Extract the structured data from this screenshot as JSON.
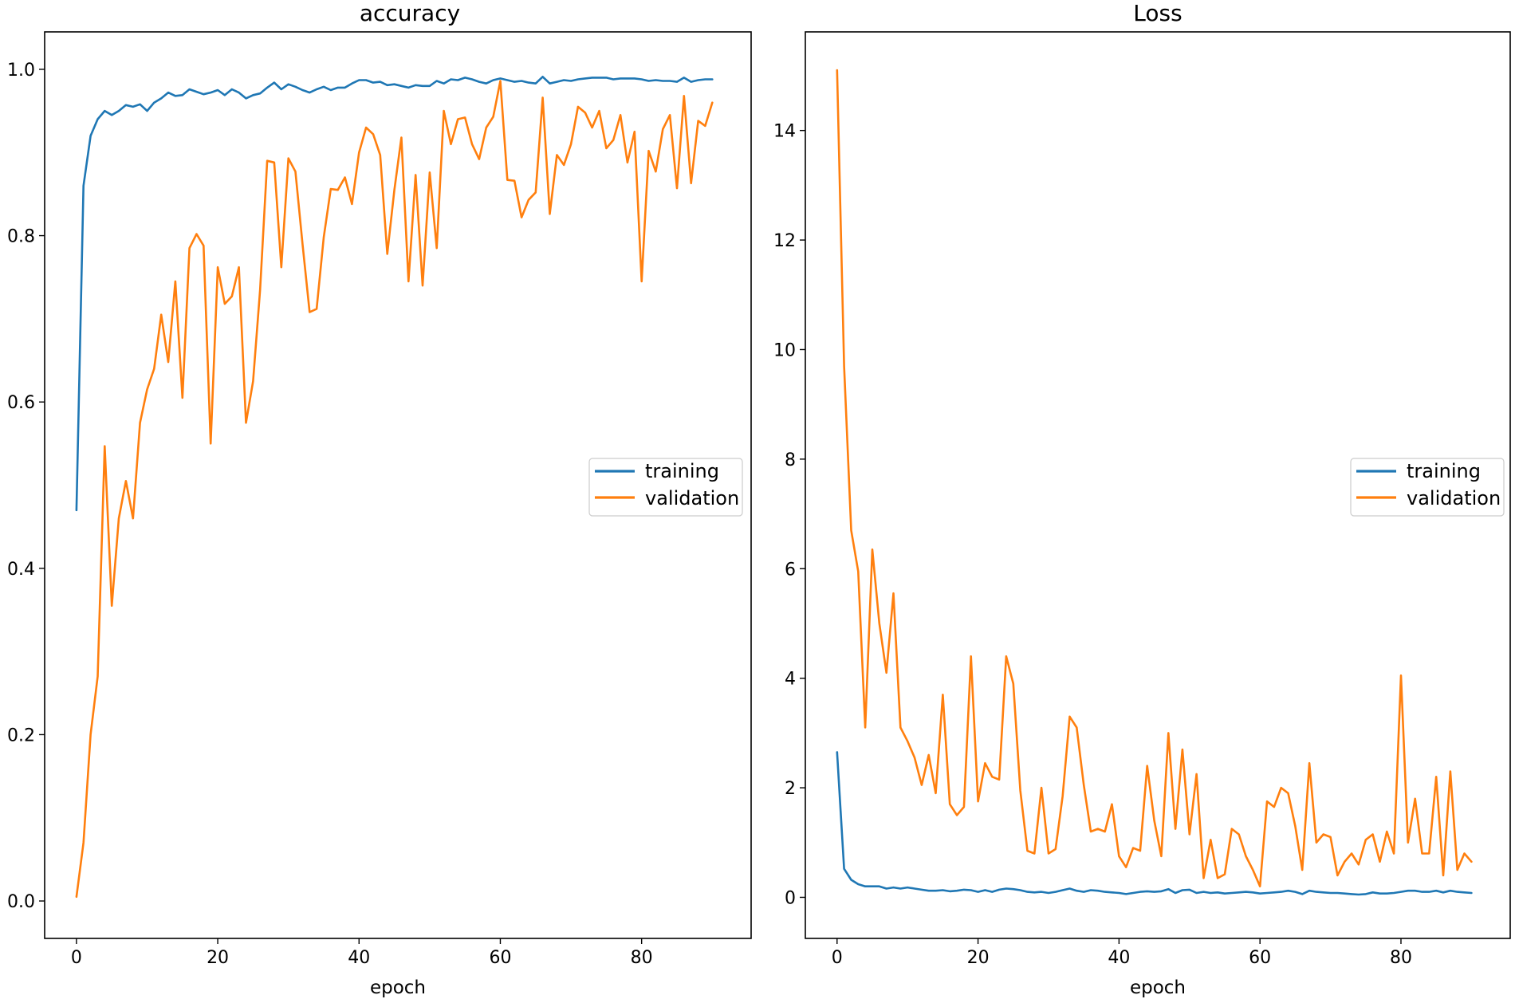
{
  "chart_data": [
    {
      "type": "line",
      "title": "accuracy",
      "xlabel": "epoch",
      "ylabel": "",
      "xlim": [
        -4.5,
        95.5
      ],
      "ylim": [
        -0.045,
        1.045
      ],
      "xticks": [
        0,
        20,
        40,
        60,
        80
      ],
      "xtick_labels": [
        "0",
        "20",
        "40",
        "60",
        "80"
      ],
      "yticks": [
        0.0,
        0.2,
        0.4,
        0.6,
        0.8,
        1.0
      ],
      "ytick_labels": [
        "0.0",
        "0.2",
        "0.4",
        "0.6",
        "0.8",
        "1.0"
      ],
      "grid": false,
      "legend_position": "center-right",
      "legend": [
        "training",
        "validation"
      ],
      "x": [
        0,
        1,
        2,
        3,
        4,
        5,
        6,
        7,
        8,
        9,
        10,
        11,
        12,
        13,
        14,
        15,
        16,
        17,
        18,
        19,
        20,
        21,
        22,
        23,
        24,
        25,
        26,
        27,
        28,
        29,
        30,
        31,
        32,
        33,
        34,
        35,
        36,
        37,
        38,
        39,
        40,
        41,
        42,
        43,
        44,
        45,
        46,
        47,
        48,
        49,
        50,
        51,
        52,
        53,
        54,
        55,
        56,
        57,
        58,
        59,
        60,
        61,
        62,
        63,
        64,
        65,
        66,
        67,
        68,
        69,
        70,
        71,
        72,
        73,
        74,
        75,
        76,
        77,
        78,
        79,
        80,
        81,
        82,
        83,
        84,
        85,
        86,
        87,
        88,
        89,
        90
      ],
      "series": [
        {
          "name": "training",
          "color": "#1f77b4",
          "values": [
            0.47,
            0.86,
            0.92,
            0.94,
            0.95,
            0.945,
            0.95,
            0.957,
            0.955,
            0.958,
            0.95,
            0.96,
            0.965,
            0.972,
            0.968,
            0.969,
            0.976,
            0.973,
            0.97,
            0.972,
            0.975,
            0.969,
            0.976,
            0.972,
            0.965,
            0.969,
            0.971,
            0.978,
            0.984,
            0.976,
            0.982,
            0.979,
            0.975,
            0.972,
            0.976,
            0.979,
            0.975,
            0.978,
            0.978,
            0.983,
            0.987,
            0.987,
            0.984,
            0.985,
            0.981,
            0.982,
            0.98,
            0.978,
            0.981,
            0.98,
            0.98,
            0.986,
            0.983,
            0.988,
            0.987,
            0.99,
            0.988,
            0.985,
            0.983,
            0.987,
            0.989,
            0.987,
            0.985,
            0.986,
            0.984,
            0.983,
            0.991,
            0.983,
            0.985,
            0.987,
            0.986,
            0.988,
            0.989,
            0.99,
            0.99,
            0.99,
            0.988,
            0.989,
            0.989,
            0.989,
            0.988,
            0.986,
            0.987,
            0.986,
            0.986,
            0.985,
            0.99,
            0.985,
            0.987,
            0.988,
            0.988
          ]
        },
        {
          "name": "validation",
          "color": "#ff7f0e",
          "values": [
            0.005,
            0.07,
            0.2,
            0.27,
            0.547,
            0.355,
            0.46,
            0.505,
            0.46,
            0.575,
            0.615,
            0.64,
            0.705,
            0.648,
            0.745,
            0.605,
            0.785,
            0.802,
            0.788,
            0.55,
            0.762,
            0.718,
            0.727,
            0.762,
            0.575,
            0.625,
            0.735,
            0.89,
            0.888,
            0.762,
            0.893,
            0.877,
            0.79,
            0.708,
            0.712,
            0.798,
            0.856,
            0.855,
            0.87,
            0.838,
            0.9,
            0.93,
            0.922,
            0.897,
            0.778,
            0.855,
            0.918,
            0.745,
            0.873,
            0.74,
            0.876,
            0.785,
            0.95,
            0.91,
            0.94,
            0.942,
            0.91,
            0.892,
            0.93,
            0.943,
            0.986,
            0.867,
            0.866,
            0.822,
            0.843,
            0.852,
            0.966,
            0.826,
            0.897,
            0.885,
            0.91,
            0.955,
            0.948,
            0.93,
            0.95,
            0.905,
            0.915,
            0.945,
            0.888,
            0.925,
            0.745,
            0.902,
            0.877,
            0.928,
            0.945,
            0.857,
            0.968,
            0.863,
            0.938,
            0.932,
            0.96
          ]
        }
      ]
    },
    {
      "type": "line",
      "title": "Loss",
      "xlabel": "epoch",
      "ylabel": "",
      "xlim": [
        -4.5,
        95.5
      ],
      "ylim": [
        -0.75,
        15.8
      ],
      "xticks": [
        0,
        20,
        40,
        60,
        80
      ],
      "xtick_labels": [
        "0",
        "20",
        "40",
        "60",
        "80"
      ],
      "yticks": [
        0,
        2,
        4,
        6,
        8,
        10,
        12,
        14
      ],
      "ytick_labels": [
        "0",
        "2",
        "4",
        "6",
        "8",
        "10",
        "12",
        "14"
      ],
      "grid": false,
      "legend_position": "center-right",
      "legend": [
        "training",
        "validation"
      ],
      "x": [
        0,
        1,
        2,
        3,
        4,
        5,
        6,
        7,
        8,
        9,
        10,
        11,
        12,
        13,
        14,
        15,
        16,
        17,
        18,
        19,
        20,
        21,
        22,
        23,
        24,
        25,
        26,
        27,
        28,
        29,
        30,
        31,
        32,
        33,
        34,
        35,
        36,
        37,
        38,
        39,
        40,
        41,
        42,
        43,
        44,
        45,
        46,
        47,
        48,
        49,
        50,
        51,
        52,
        53,
        54,
        55,
        56,
        57,
        58,
        59,
        60,
        61,
        62,
        63,
        64,
        65,
        66,
        67,
        68,
        69,
        70,
        71,
        72,
        73,
        74,
        75,
        76,
        77,
        78,
        79,
        80,
        81,
        82,
        83,
        84,
        85,
        86,
        87,
        88,
        89,
        90
      ],
      "series": [
        {
          "name": "training",
          "color": "#1f77b4",
          "values": [
            2.65,
            0.52,
            0.32,
            0.24,
            0.2,
            0.2,
            0.2,
            0.16,
            0.18,
            0.16,
            0.18,
            0.16,
            0.14,
            0.12,
            0.12,
            0.13,
            0.11,
            0.12,
            0.14,
            0.13,
            0.1,
            0.13,
            0.1,
            0.14,
            0.16,
            0.15,
            0.13,
            0.1,
            0.09,
            0.1,
            0.08,
            0.1,
            0.13,
            0.16,
            0.12,
            0.1,
            0.13,
            0.12,
            0.1,
            0.09,
            0.08,
            0.06,
            0.08,
            0.1,
            0.11,
            0.1,
            0.11,
            0.15,
            0.08,
            0.13,
            0.14,
            0.08,
            0.1,
            0.08,
            0.09,
            0.07,
            0.08,
            0.09,
            0.1,
            0.09,
            0.07,
            0.08,
            0.09,
            0.1,
            0.12,
            0.1,
            0.06,
            0.12,
            0.1,
            0.09,
            0.08,
            0.08,
            0.07,
            0.06,
            0.05,
            0.06,
            0.09,
            0.07,
            0.07,
            0.08,
            0.1,
            0.12,
            0.12,
            0.1,
            0.1,
            0.12,
            0.09,
            0.12,
            0.1,
            0.09,
            0.08
          ]
        },
        {
          "name": "validation",
          "color": "#ff7f0e",
          "values": [
            15.1,
            9.7,
            6.7,
            5.95,
            3.1,
            6.35,
            5.0,
            4.1,
            5.55,
            3.1,
            2.85,
            2.55,
            2.05,
            2.6,
            1.9,
            3.7,
            1.7,
            1.5,
            1.65,
            4.4,
            1.75,
            2.45,
            2.2,
            2.15,
            4.4,
            3.9,
            1.95,
            0.85,
            0.8,
            2.0,
            0.8,
            0.88,
            1.85,
            3.3,
            3.1,
            2.05,
            1.2,
            1.25,
            1.2,
            1.7,
            0.75,
            0.55,
            0.9,
            0.85,
            2.4,
            1.4,
            0.75,
            3.0,
            1.25,
            2.7,
            1.15,
            2.25,
            0.35,
            1.05,
            0.35,
            0.42,
            1.25,
            1.15,
            0.75,
            0.5,
            0.2,
            1.75,
            1.65,
            2.0,
            1.9,
            1.3,
            0.5,
            2.45,
            1.0,
            1.15,
            1.1,
            0.4,
            0.65,
            0.8,
            0.6,
            1.05,
            1.15,
            0.65,
            1.2,
            0.8,
            4.05,
            1.0,
            1.8,
            0.8,
            0.8,
            2.2,
            0.4,
            2.3,
            0.5,
            0.8,
            0.65
          ]
        }
      ]
    }
  ]
}
